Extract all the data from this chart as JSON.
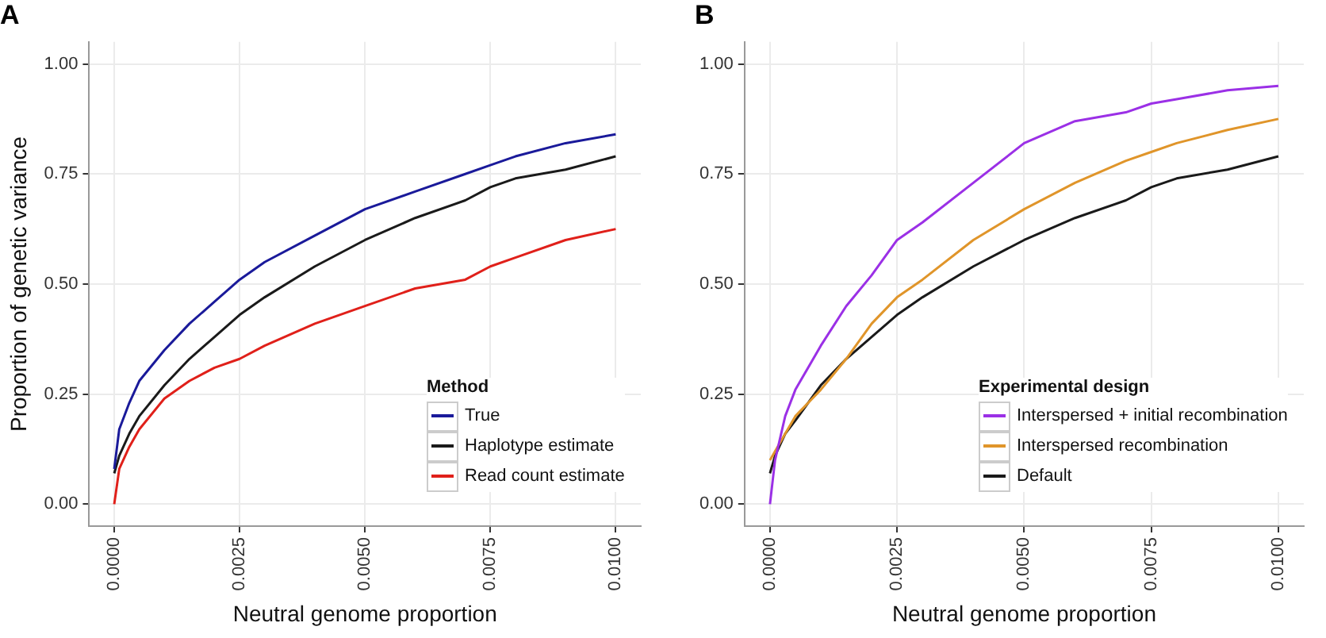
{
  "chart_data": [
    {
      "type": "line",
      "title": "A",
      "xlabel": "Neutral genome proportion",
      "ylabel": "Proportion of genetic variance",
      "legend_title": "Method",
      "legend": "bottom right",
      "grid": true,
      "marker": "none",
      "line_style": "solid",
      "x": [
        0,
        0.0001,
        0.0003,
        0.0005,
        0.001,
        0.0015,
        0.002,
        0.0025,
        0.003,
        0.004,
        0.005,
        0.006,
        0.007,
        0.0075,
        0.008,
        0.009,
        0.01
      ],
      "xlim": [
        -0.0005,
        0.0105
      ],
      "xticks": [
        {
          "value": 0,
          "label": "0.0000"
        },
        {
          "value": 0.0025,
          "label": "0.0025"
        },
        {
          "value": 0.005,
          "label": "0.0050"
        },
        {
          "value": 0.0075,
          "label": "0.0075"
        },
        {
          "value": 0.01,
          "label": "0.0100"
        }
      ],
      "ylim": [
        -0.05,
        1.05
      ],
      "yticks": [
        {
          "value": 0,
          "label": "0.00"
        },
        {
          "value": 0.25,
          "label": "0.25"
        },
        {
          "value": 0.5,
          "label": "0.50"
        },
        {
          "value": 0.75,
          "label": "0.75"
        },
        {
          "value": 1,
          "label": "1.00"
        }
      ],
      "series": [
        {
          "name": "True",
          "color": "#1a1a9a",
          "values": [
            0.08,
            0.17,
            0.23,
            0.28,
            0.35,
            0.41,
            0.46,
            0.51,
            0.55,
            0.61,
            0.67,
            0.71,
            0.75,
            0.77,
            0.79,
            0.82,
            0.84
          ]
        },
        {
          "name": "Haplotype estimate",
          "color": "#1a1a1a",
          "values": [
            0.07,
            0.11,
            0.16,
            0.2,
            0.27,
            0.33,
            0.38,
            0.43,
            0.47,
            0.54,
            0.6,
            0.65,
            0.69,
            0.72,
            0.74,
            0.76,
            0.79
          ]
        },
        {
          "name": "Read count estimate",
          "color": "#e0201a",
          "values": [
            0,
            0.08,
            0.13,
            0.17,
            0.24,
            0.28,
            0.31,
            0.33,
            0.36,
            0.41,
            0.45,
            0.49,
            0.51,
            0.54,
            0.56,
            0.6,
            0.625
          ]
        }
      ]
    },
    {
      "type": "line",
      "title": "B",
      "xlabel": "Neutral genome proportion",
      "legend_title": "Experimental design",
      "legend": "bottom right",
      "grid": true,
      "marker": "none",
      "line_style": "solid",
      "x": [
        0,
        0.0001,
        0.0003,
        0.0005,
        0.001,
        0.0015,
        0.002,
        0.0025,
        0.003,
        0.004,
        0.005,
        0.006,
        0.007,
        0.0075,
        0.008,
        0.009,
        0.01
      ],
      "xlim": [
        -0.0005,
        0.0105
      ],
      "xticks": [
        {
          "value": 0,
          "label": "0.0000"
        },
        {
          "value": 0.0025,
          "label": "0.0025"
        },
        {
          "value": 0.005,
          "label": "0.0050"
        },
        {
          "value": 0.0075,
          "label": "0.0075"
        },
        {
          "value": 0.01,
          "label": "0.0100"
        }
      ],
      "ylim": [
        -0.05,
        1.05
      ],
      "yticks": [
        {
          "value": 0,
          "label": "0.00"
        },
        {
          "value": 0.25,
          "label": "0.25"
        },
        {
          "value": 0.5,
          "label": "0.50"
        },
        {
          "value": 0.75,
          "label": "0.75"
        },
        {
          "value": 1,
          "label": "1.00"
        }
      ],
      "series": [
        {
          "name": "Interspersed + initial recombination",
          "color": "#9b30e6",
          "values": [
            0,
            0.1,
            0.2,
            0.26,
            0.36,
            0.45,
            0.52,
            0.6,
            0.64,
            0.73,
            0.82,
            0.87,
            0.89,
            0.91,
            0.92,
            0.94,
            0.95
          ]
        },
        {
          "name": "Interspersed recombination",
          "color": "#e0952a",
          "values": [
            0.1,
            0.12,
            0.16,
            0.2,
            0.26,
            0.33,
            0.41,
            0.47,
            0.51,
            0.6,
            0.67,
            0.73,
            0.78,
            0.8,
            0.82,
            0.85,
            0.875
          ]
        },
        {
          "name": "Default",
          "color": "#1a1a1a",
          "values": [
            0.07,
            0.11,
            0.16,
            0.19,
            0.27,
            0.33,
            0.38,
            0.43,
            0.47,
            0.54,
            0.6,
            0.65,
            0.69,
            0.72,
            0.74,
            0.76,
            0.79
          ]
        }
      ]
    }
  ]
}
